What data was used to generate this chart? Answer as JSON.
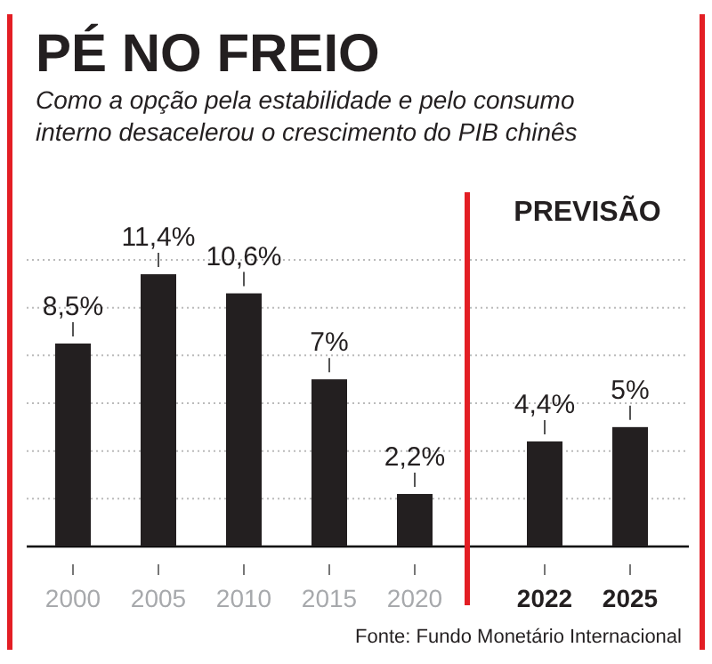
{
  "chart_data": {
    "type": "bar",
    "title": "PÉ NO FREIO",
    "subtitle": "Como a opção pela estabilidade e pelo consumo interno desacelerou o crescimento do PIB chinês",
    "categories": [
      "2000",
      "2005",
      "2010",
      "2015",
      "2020",
      "2022",
      "2025"
    ],
    "values": [
      8.5,
      11.4,
      10.6,
      7,
      2.2,
      4.4,
      5
    ],
    "color": "#231f20",
    "value_labels": [
      "8,5%",
      "11,4%",
      "10,6%",
      "7%",
      "2,2%",
      "4,4%",
      "5%"
    ],
    "ylim": [
      0,
      12
    ],
    "yticks": [
      {
        "value": 0,
        "label": null
      },
      {
        "value": 2,
        "label": null
      },
      {
        "value": 4,
        "label": null
      },
      {
        "value": 6,
        "label": null
      },
      {
        "value": 8,
        "label": null
      },
      {
        "value": 10,
        "label": null
      },
      {
        "value": 12,
        "label": null
      }
    ],
    "tick_labels": "x",
    "grid": "y",
    "ref_lines": [
      {
        "axis": "x",
        "value": "2022",
        "label": "PREVISÃO",
        "color": "#e31e24"
      }
    ],
    "annotations": [
      "Fonte: Fundo Monetário Internacional"
    ]
  }
}
